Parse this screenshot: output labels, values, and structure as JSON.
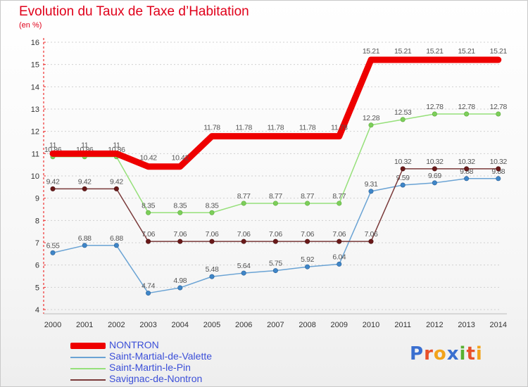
{
  "title": "Evolution du Taux de Taxe d’Habitation",
  "unit_label": "(en %)",
  "logo": {
    "text": "Proxiti",
    "letters": [
      "P",
      "r",
      "o",
      "x",
      "i",
      "t",
      "i"
    ],
    "colors": [
      "#3a6fd0",
      "#e8502a",
      "#f2a31a",
      "#3a6fd0",
      "#58b030",
      "#e8502a",
      "#f2a31a"
    ]
  },
  "colors": {
    "NONTRON": "#ee0000",
    "Saint-Martial-de-Valette": "#6aa3d4",
    "Saint-Martin-le-Pin": "#96e07a",
    "Savignac-de-Nontron": "#7a3a3a",
    "axis": "#ee3030",
    "grid": "#d0d0d0",
    "label": "#555555"
  },
  "chart_data": {
    "type": "line",
    "x": [
      "2000",
      "2001",
      "2002",
      "2003",
      "2004",
      "2005",
      "2006",
      "2007",
      "2008",
      "2009",
      "2010",
      "2011",
      "2012",
      "2013",
      "2014"
    ],
    "ylim": [
      4,
      16
    ],
    "yticks": [
      "4",
      "5",
      "6",
      "7",
      "8",
      "9",
      "10",
      "11",
      "12",
      "13",
      "14",
      "15",
      "16"
    ],
    "grid": "horizontal dashed",
    "legend_position": "bottom-left",
    "series": [
      {
        "name": "Saint-Martial-de-Valette",
        "values": [
          6.55,
          6.88,
          6.88,
          4.74,
          4.98,
          5.48,
          5.64,
          5.75,
          5.92,
          6.04,
          9.31,
          9.59,
          9.69,
          9.88,
          9.88
        ],
        "labels": [
          "6.55",
          "6.88",
          "6.88",
          "4.74",
          "4.98",
          "5.48",
          "5.64",
          "5.75",
          "5.92",
          "6.04",
          "9.31",
          "9.59",
          "9.69",
          "9.88",
          "9.88"
        ]
      },
      {
        "name": "Savignac-de-Nontron",
        "values": [
          9.42,
          9.42,
          9.42,
          7.06,
          7.06,
          7.06,
          7.06,
          7.06,
          7.06,
          7.06,
          7.06,
          10.32,
          10.32,
          10.32,
          10.32
        ],
        "labels": [
          "9.42",
          "9.42",
          "9.42",
          "7.06",
          "7.06",
          "7.06",
          "7.06",
          "7.06",
          "7.06",
          "7.06",
          "7.06",
          "10.32",
          "10.32",
          "10.32",
          "10.32"
        ]
      },
      {
        "name": "Saint-Martin-le-Pin",
        "values": [
          10.86,
          10.86,
          10.86,
          8.35,
          8.35,
          8.35,
          8.77,
          8.77,
          8.77,
          8.77,
          12.28,
          12.53,
          12.78,
          12.78,
          12.78
        ],
        "labels": [
          "10.86",
          "10.86",
          "10.86",
          "8.35",
          "8.35",
          "8.35",
          "8.77",
          "8.77",
          "8.77",
          "8.77",
          "12.28",
          "12.53",
          "12.78",
          "12.78",
          "12.78"
        ]
      },
      {
        "name": "NONTRON",
        "values": [
          11,
          11,
          11,
          10.42,
          10.42,
          11.78,
          11.78,
          11.78,
          11.78,
          11.78,
          15.21,
          15.21,
          15.21,
          15.21,
          15.21
        ],
        "labels": [
          "11",
          "11",
          "11",
          "10.42",
          "10.42",
          "11.78",
          "11.78",
          "11.78",
          "11.78",
          "11.78",
          "15.21",
          "15.21",
          "15.21",
          "15.21",
          "15.21"
        ]
      }
    ],
    "legend": [
      "NONTRON",
      "Saint-Martial-de-Valette",
      "Saint-Martin-le-Pin",
      "Savignac-de-Nontron"
    ]
  }
}
